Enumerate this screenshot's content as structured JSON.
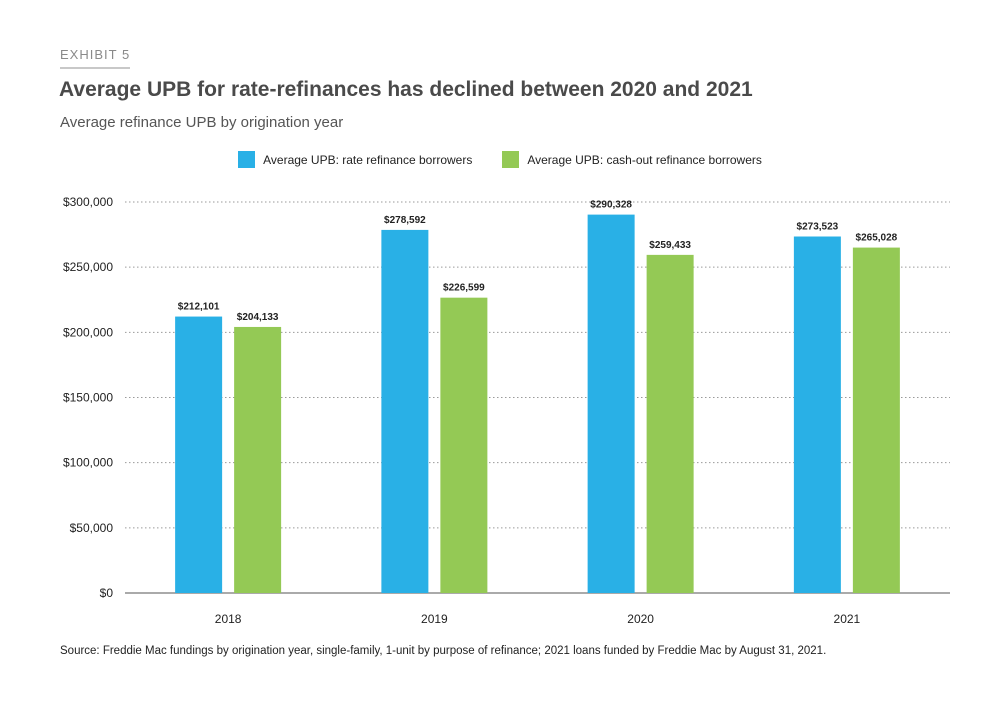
{
  "exhibit": "EXHIBIT 5",
  "title": "Average UPB for rate-refinances has declined between 2020 and 2021",
  "subtitle": "Average refinance UPB by origination year",
  "source": "Source: Freddie Mac fundings by origination year, single-family, 1-unit by purpose of refinance; 2021 loans funded by Freddie Mac by August 31, 2021.",
  "colors": {
    "rate": "#29b0e6",
    "cashout": "#94c955",
    "grid": "#9a9a9a",
    "axis": "#555555"
  },
  "chart_data": {
    "type": "bar",
    "categories": [
      "2018",
      "2019",
      "2020",
      "2021"
    ],
    "series": [
      {
        "name": "Average UPB: rate refinance borrowers",
        "values": [
          212101,
          278592,
          290328,
          273523
        ],
        "labels": [
          "$212,101",
          "$278,592",
          "$290,328",
          "$273,523"
        ]
      },
      {
        "name": "Average UPB: cash-out refinance borrowers",
        "values": [
          204133,
          226599,
          259433,
          265028
        ],
        "labels": [
          "$204,133",
          "$226,599",
          "$259,433",
          "$265,028"
        ]
      }
    ],
    "ylim": [
      0,
      300000
    ],
    "yticks": [
      0,
      50000,
      100000,
      150000,
      200000,
      250000,
      300000
    ],
    "ytick_labels": [
      "$0",
      "$50,000",
      "$100,000",
      "$150,000",
      "$200,000",
      "$250,000",
      "$300,000"
    ],
    "grid": true,
    "legend_position": "top-center",
    "xlabel": "",
    "ylabel": ""
  }
}
